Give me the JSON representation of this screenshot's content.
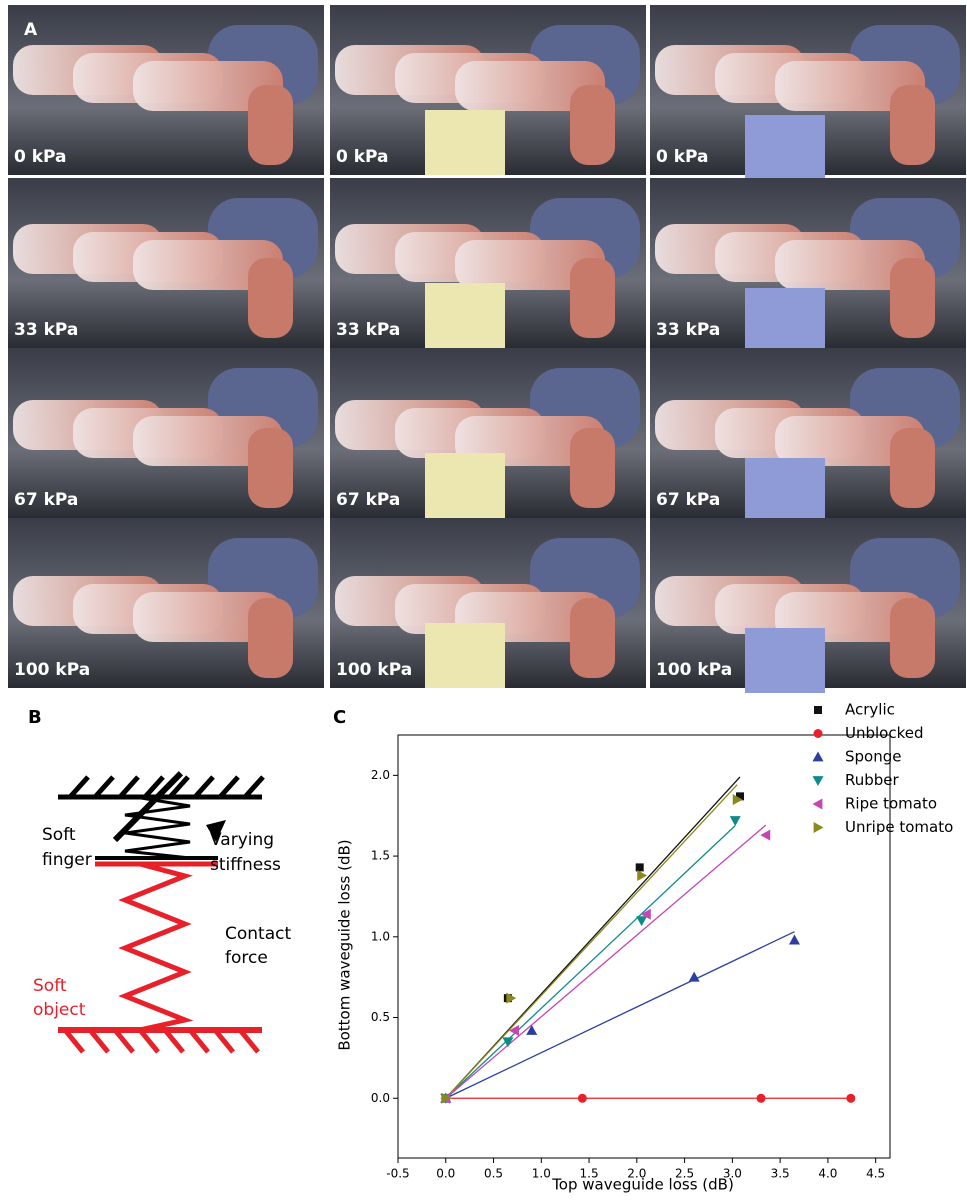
{
  "panel_a": {
    "label": "A",
    "pressures": [
      "0 kPa",
      "33 kPa",
      "67 kPa",
      "100 kPa"
    ]
  },
  "panel_b": {
    "label": "B",
    "finger": [
      "Soft",
      "finger"
    ],
    "stiffness": [
      "Varying",
      "stiffness"
    ],
    "contact": [
      "Contact",
      "force"
    ],
    "object": [
      "Soft",
      "object"
    ]
  },
  "chart_data": {
    "type": "scatter",
    "panel_label": "C",
    "x_label": "Top waveguide loss (dB)",
    "y_label": "Bottom waveguide loss (dB)",
    "xlim": [
      -0.5,
      4.65
    ],
    "ylim": [
      -0.37,
      2.25
    ],
    "xticks": [
      -0.5,
      {
        "value": 0,
        "label": "0.0"
      },
      0.5,
      {
        "value": 1,
        "label": "1.0"
      },
      1.5,
      {
        "value": 2,
        "label": "2.0"
      },
      2.5,
      {
        "value": 3,
        "label": "3.0"
      },
      3.5,
      {
        "value": 4,
        "label": "4.0"
      },
      4.5
    ],
    "yticks": [
      {
        "value": 0,
        "label": "0.0"
      },
      0.5,
      {
        "value": 1,
        "label": "1.0"
      },
      1.5,
      {
        "value": 2,
        "label": "2.0"
      }
    ],
    "series": [
      {
        "name": "Acrylic",
        "color": "#111111",
        "marker": "square",
        "x": [
          0,
          0.65,
          2.03,
          3.08
        ],
        "values": [
          0,
          0.62,
          1.43,
          1.87
        ]
      },
      {
        "name": "Unblocked",
        "color": "#e8202a",
        "marker": "circle",
        "x": [
          0,
          1.43,
          3.3,
          4.24
        ],
        "values": [
          0,
          0,
          0,
          0
        ]
      },
      {
        "name": "Sponge",
        "color": "#2b3ea0",
        "marker": "up",
        "x": [
          0,
          0.9,
          2.6,
          3.65
        ],
        "values": [
          0,
          0.42,
          0.75,
          0.98
        ]
      },
      {
        "name": "Rubber",
        "color": "#0f8a8a",
        "marker": "down",
        "x": [
          0,
          0.65,
          2.05,
          3.03
        ],
        "values": [
          0,
          0.35,
          1.1,
          1.72
        ]
      },
      {
        "name": "Ripe tomato",
        "color": "#c545b5",
        "marker": "left",
        "x": [
          0,
          0.72,
          2.1,
          3.35
        ],
        "values": [
          0,
          0.42,
          1.14,
          1.63
        ]
      },
      {
        "name": "Unripe tomato",
        "color": "#8a8a1a",
        "marker": "right",
        "x": [
          0,
          0.68,
          2.05,
          3.05
        ],
        "values": [
          0,
          0.62,
          1.38,
          1.85
        ]
      }
    ]
  }
}
